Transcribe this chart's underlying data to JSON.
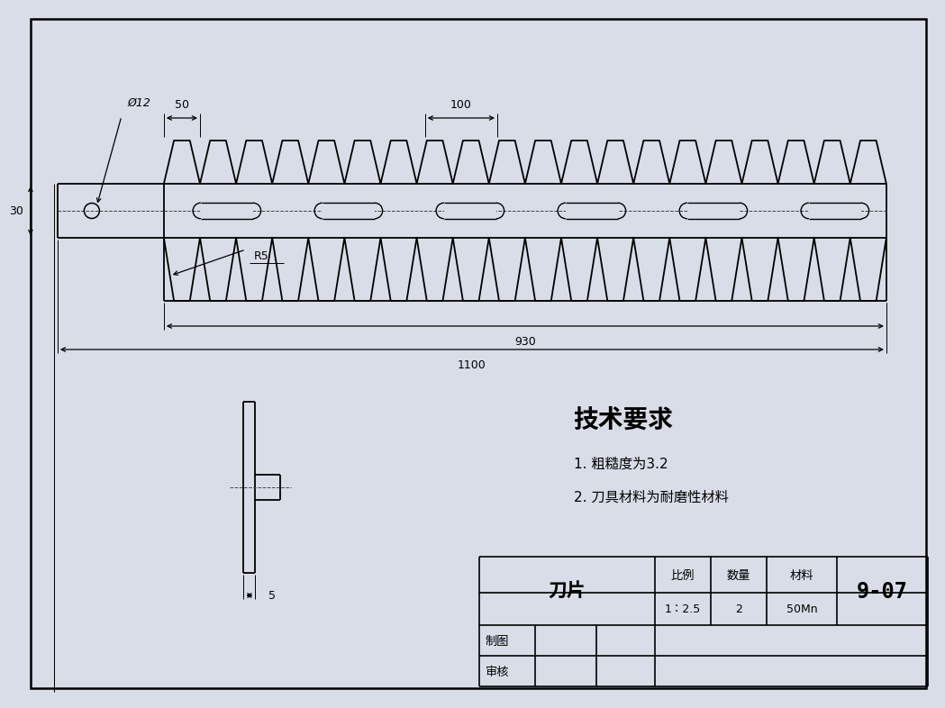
{
  "bg_color": "#d8dde8",
  "line_color": "#000000",
  "tech_title": "技术要求",
  "tech_req1": "1. 粗糙度为3.2",
  "tech_req2": "2. 刀具材料为耐磨性材料",
  "dim_50": "50",
  "dim_100": "100",
  "dim_30": "30",
  "dim_phi12": "Ø12",
  "dim_R5": "R5",
  "dim_930": "930",
  "dim_1100": "1100",
  "dim_5": "5",
  "table_name": "刀片",
  "table_scale_label": "比例",
  "table_qty_label": "数量",
  "table_mat_label": "材料",
  "table_num": "9-07",
  "table_scale_val": "1：2.5",
  "table_qty_val": "2",
  "table_mat_val": "50Mn",
  "table_draw": "制图",
  "table_review": "审核",
  "n_teeth_upper": 20,
  "n_teeth_lower": 20,
  "n_slots": 6
}
